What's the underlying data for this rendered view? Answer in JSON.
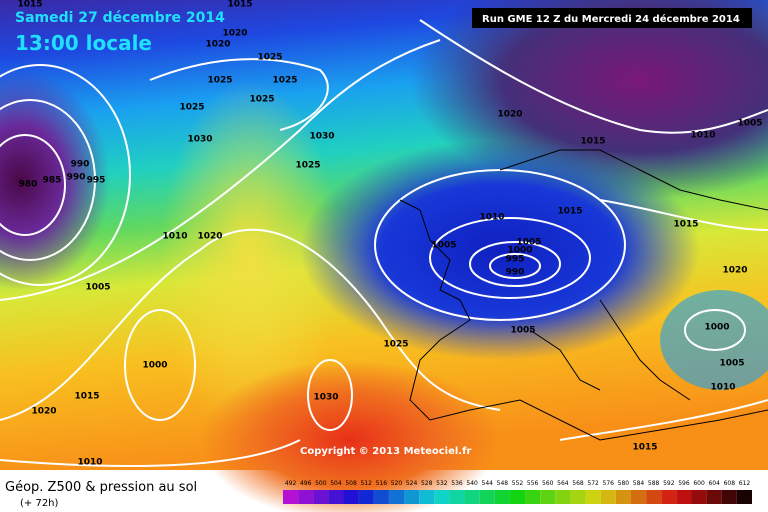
{
  "header": {
    "date": "Samedi 27 décembre 2014",
    "time": "13:00 locale",
    "run": "Run GME 12 Z du Mercredi 24 décembre 2014"
  },
  "copyright": "Copyright © 2013 Meteociel.fr",
  "isobar_labels": [
    "1015",
    "1015",
    "1020",
    "1020",
    "1025",
    "1025",
    "1025",
    "1025",
    "1025",
    "1030",
    "1030",
    "1025",
    "990",
    "990",
    "995",
    "980",
    "985",
    "1020",
    "1015",
    "1010",
    "1005",
    "1015",
    "1015",
    "1010",
    "1005",
    "1005",
    "1000",
    "995",
    "990",
    "1020",
    "1010",
    "1020",
    "1005",
    "1005",
    "1025",
    "1000",
    "1005",
    "1000",
    "1015",
    "1020",
    "1030",
    "1010",
    "1015",
    "1010"
  ],
  "footer": {
    "title": "Géop. Z500 & pression au sol",
    "lead": "(+ 72h)"
  },
  "legend": {
    "values": [
      492,
      496,
      500,
      504,
      508,
      512,
      516,
      520,
      524,
      528,
      532,
      536,
      540,
      544,
      548,
      552,
      556,
      560,
      564,
      568,
      572,
      576,
      580,
      584,
      588,
      592,
      596,
      600,
      604,
      608,
      612
    ]
  }
}
